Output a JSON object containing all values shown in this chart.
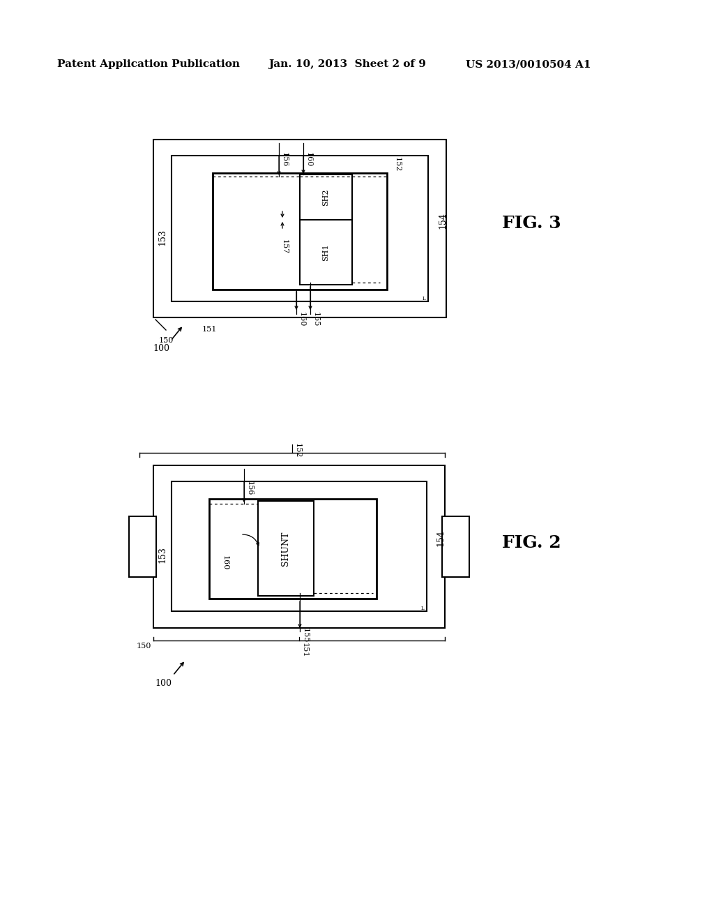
{
  "bg": "#ffffff",
  "header_left": "Patent Application Publication",
  "header_mid": "Jan. 10, 2013  Sheet 2 of 9",
  "header_right": "US 2013/0010504 A1",
  "fig3_title": "FIG. 3",
  "fig2_title": "FIG. 2"
}
